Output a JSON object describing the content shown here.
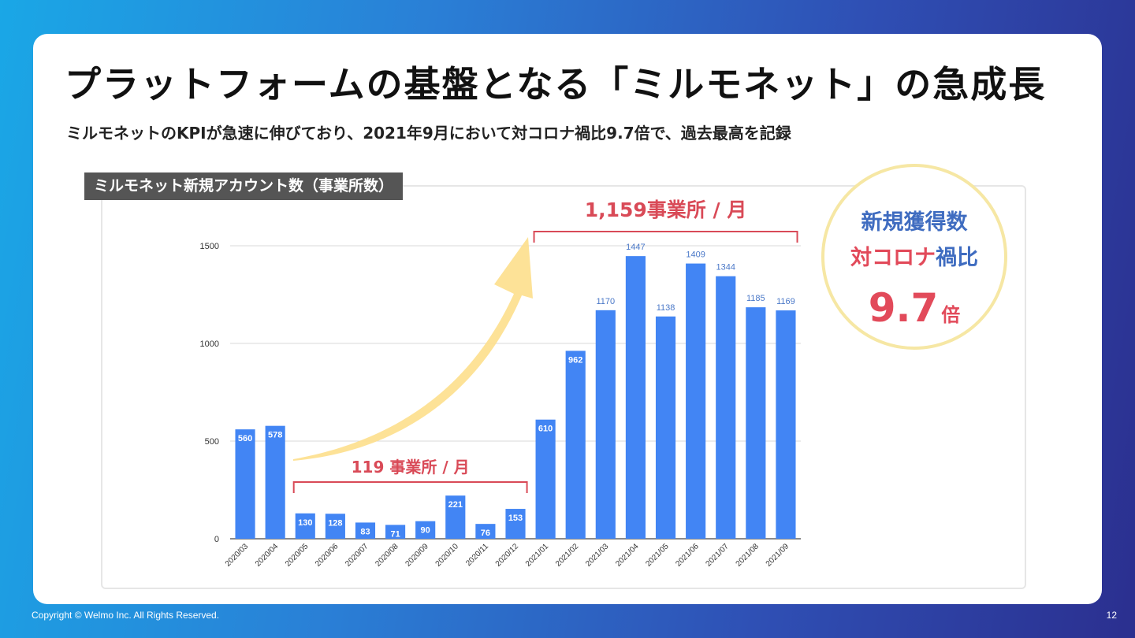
{
  "slide": {
    "title": "プラットフォームの基盤となる「ミルモネット」の急成長",
    "subtitle": "ミルモネットのKPIが急速に伸びており、2021年9月において対コロナ禍比9.7倍で、過去最高を記録",
    "chart_tag": "ミルモネット新規アカウント数（事業所数）",
    "badge": {
      "line1": "新規獲得数",
      "line2_a": "対コロナ",
      "line2_b": "禍比",
      "value": "9.7",
      "unit": "倍"
    },
    "footer": "Copyright © Welmo Inc. All Rights Reserved.",
    "page_number": "12"
  },
  "colors": {
    "bar": "#4285f4",
    "bracket": "#d94a57",
    "arrow": "#fde08e",
    "badge_blue": "#3f6cc0",
    "badge_red": "#e24a5a"
  },
  "chart_data": {
    "type": "bar",
    "title": "ミルモネット新規アカウント数（事業所数）",
    "categories": [
      "2020/03",
      "2020/04",
      "2020/05",
      "2020/06",
      "2020/07",
      "2020/08",
      "2020/09",
      "2020/10",
      "2020/11",
      "2020/12",
      "2021/01",
      "2021/02",
      "2021/03",
      "2021/04",
      "2021/05",
      "2021/06",
      "2021/07",
      "2021/08",
      "2021/09"
    ],
    "values": [
      560,
      578,
      130,
      128,
      83,
      71,
      90,
      221,
      76,
      153,
      610,
      962,
      1170,
      1447,
      1138,
      1409,
      1344,
      1185,
      1169
    ],
    "ylim": [
      0,
      1500
    ],
    "yticks": [
      0,
      500,
      1000,
      1500
    ],
    "grid": true,
    "annotations": {
      "low_period": "119 事業所 / 月",
      "high_period": "1,159事業所 / 月"
    }
  }
}
